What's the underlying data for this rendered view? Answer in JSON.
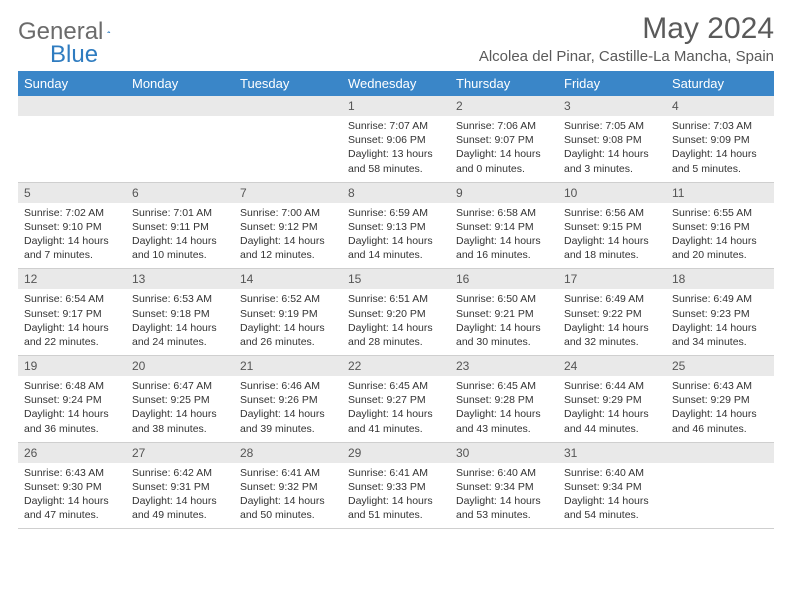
{
  "logo": {
    "text_gray": "General",
    "text_blue": "Blue",
    "icon_color": "#2f7cc0"
  },
  "header": {
    "month_title": "May 2024",
    "location": "Alcolea del Pinar, Castille-La Mancha, Spain"
  },
  "colors": {
    "header_bg": "#3a86c8",
    "header_fg": "#ffffff",
    "daynum_bg": "#e9e9e9",
    "border": "#cfcfcf",
    "text": "#333333",
    "title_gray": "#5a5a5a"
  },
  "weekdays": [
    "Sunday",
    "Monday",
    "Tuesday",
    "Wednesday",
    "Thursday",
    "Friday",
    "Saturday"
  ],
  "weeks": [
    [
      {
        "blank": true
      },
      {
        "blank": true
      },
      {
        "blank": true
      },
      {
        "num": "1",
        "sunrise": "Sunrise: 7:07 AM",
        "sunset": "Sunset: 9:06 PM",
        "daylight": "Daylight: 13 hours and 58 minutes."
      },
      {
        "num": "2",
        "sunrise": "Sunrise: 7:06 AM",
        "sunset": "Sunset: 9:07 PM",
        "daylight": "Daylight: 14 hours and 0 minutes."
      },
      {
        "num": "3",
        "sunrise": "Sunrise: 7:05 AM",
        "sunset": "Sunset: 9:08 PM",
        "daylight": "Daylight: 14 hours and 3 minutes."
      },
      {
        "num": "4",
        "sunrise": "Sunrise: 7:03 AM",
        "sunset": "Sunset: 9:09 PM",
        "daylight": "Daylight: 14 hours and 5 minutes."
      }
    ],
    [
      {
        "num": "5",
        "sunrise": "Sunrise: 7:02 AM",
        "sunset": "Sunset: 9:10 PM",
        "daylight": "Daylight: 14 hours and 7 minutes."
      },
      {
        "num": "6",
        "sunrise": "Sunrise: 7:01 AM",
        "sunset": "Sunset: 9:11 PM",
        "daylight": "Daylight: 14 hours and 10 minutes."
      },
      {
        "num": "7",
        "sunrise": "Sunrise: 7:00 AM",
        "sunset": "Sunset: 9:12 PM",
        "daylight": "Daylight: 14 hours and 12 minutes."
      },
      {
        "num": "8",
        "sunrise": "Sunrise: 6:59 AM",
        "sunset": "Sunset: 9:13 PM",
        "daylight": "Daylight: 14 hours and 14 minutes."
      },
      {
        "num": "9",
        "sunrise": "Sunrise: 6:58 AM",
        "sunset": "Sunset: 9:14 PM",
        "daylight": "Daylight: 14 hours and 16 minutes."
      },
      {
        "num": "10",
        "sunrise": "Sunrise: 6:56 AM",
        "sunset": "Sunset: 9:15 PM",
        "daylight": "Daylight: 14 hours and 18 minutes."
      },
      {
        "num": "11",
        "sunrise": "Sunrise: 6:55 AM",
        "sunset": "Sunset: 9:16 PM",
        "daylight": "Daylight: 14 hours and 20 minutes."
      }
    ],
    [
      {
        "num": "12",
        "sunrise": "Sunrise: 6:54 AM",
        "sunset": "Sunset: 9:17 PM",
        "daylight": "Daylight: 14 hours and 22 minutes."
      },
      {
        "num": "13",
        "sunrise": "Sunrise: 6:53 AM",
        "sunset": "Sunset: 9:18 PM",
        "daylight": "Daylight: 14 hours and 24 minutes."
      },
      {
        "num": "14",
        "sunrise": "Sunrise: 6:52 AM",
        "sunset": "Sunset: 9:19 PM",
        "daylight": "Daylight: 14 hours and 26 minutes."
      },
      {
        "num": "15",
        "sunrise": "Sunrise: 6:51 AM",
        "sunset": "Sunset: 9:20 PM",
        "daylight": "Daylight: 14 hours and 28 minutes."
      },
      {
        "num": "16",
        "sunrise": "Sunrise: 6:50 AM",
        "sunset": "Sunset: 9:21 PM",
        "daylight": "Daylight: 14 hours and 30 minutes."
      },
      {
        "num": "17",
        "sunrise": "Sunrise: 6:49 AM",
        "sunset": "Sunset: 9:22 PM",
        "daylight": "Daylight: 14 hours and 32 minutes."
      },
      {
        "num": "18",
        "sunrise": "Sunrise: 6:49 AM",
        "sunset": "Sunset: 9:23 PM",
        "daylight": "Daylight: 14 hours and 34 minutes."
      }
    ],
    [
      {
        "num": "19",
        "sunrise": "Sunrise: 6:48 AM",
        "sunset": "Sunset: 9:24 PM",
        "daylight": "Daylight: 14 hours and 36 minutes."
      },
      {
        "num": "20",
        "sunrise": "Sunrise: 6:47 AM",
        "sunset": "Sunset: 9:25 PM",
        "daylight": "Daylight: 14 hours and 38 minutes."
      },
      {
        "num": "21",
        "sunrise": "Sunrise: 6:46 AM",
        "sunset": "Sunset: 9:26 PM",
        "daylight": "Daylight: 14 hours and 39 minutes."
      },
      {
        "num": "22",
        "sunrise": "Sunrise: 6:45 AM",
        "sunset": "Sunset: 9:27 PM",
        "daylight": "Daylight: 14 hours and 41 minutes."
      },
      {
        "num": "23",
        "sunrise": "Sunrise: 6:45 AM",
        "sunset": "Sunset: 9:28 PM",
        "daylight": "Daylight: 14 hours and 43 minutes."
      },
      {
        "num": "24",
        "sunrise": "Sunrise: 6:44 AM",
        "sunset": "Sunset: 9:29 PM",
        "daylight": "Daylight: 14 hours and 44 minutes."
      },
      {
        "num": "25",
        "sunrise": "Sunrise: 6:43 AM",
        "sunset": "Sunset: 9:29 PM",
        "daylight": "Daylight: 14 hours and 46 minutes."
      }
    ],
    [
      {
        "num": "26",
        "sunrise": "Sunrise: 6:43 AM",
        "sunset": "Sunset: 9:30 PM",
        "daylight": "Daylight: 14 hours and 47 minutes."
      },
      {
        "num": "27",
        "sunrise": "Sunrise: 6:42 AM",
        "sunset": "Sunset: 9:31 PM",
        "daylight": "Daylight: 14 hours and 49 minutes."
      },
      {
        "num": "28",
        "sunrise": "Sunrise: 6:41 AM",
        "sunset": "Sunset: 9:32 PM",
        "daylight": "Daylight: 14 hours and 50 minutes."
      },
      {
        "num": "29",
        "sunrise": "Sunrise: 6:41 AM",
        "sunset": "Sunset: 9:33 PM",
        "daylight": "Daylight: 14 hours and 51 minutes."
      },
      {
        "num": "30",
        "sunrise": "Sunrise: 6:40 AM",
        "sunset": "Sunset: 9:34 PM",
        "daylight": "Daylight: 14 hours and 53 minutes."
      },
      {
        "num": "31",
        "sunrise": "Sunrise: 6:40 AM",
        "sunset": "Sunset: 9:34 PM",
        "daylight": "Daylight: 14 hours and 54 minutes."
      },
      {
        "blank": true
      }
    ]
  ]
}
